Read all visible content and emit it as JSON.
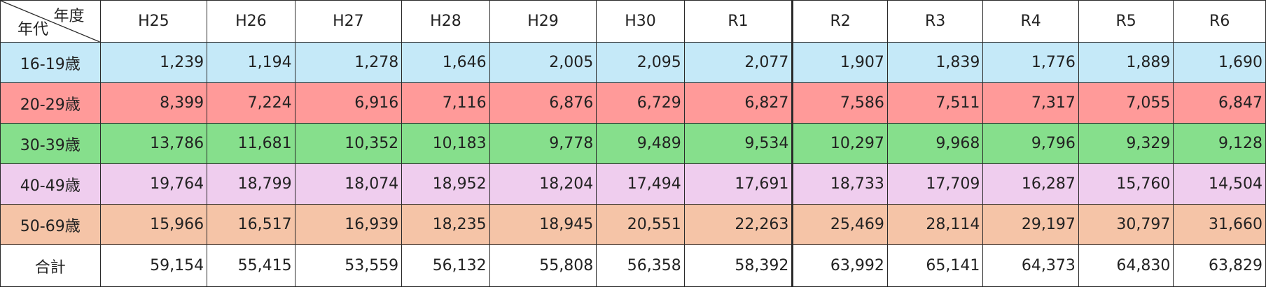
{
  "table": {
    "corner": {
      "col_header": "年度",
      "row_header": "年代"
    },
    "columns": [
      "H25",
      "H26",
      "H27",
      "H28",
      "H29",
      "H30",
      "R1",
      "R2",
      "R3",
      "R4",
      "R5",
      "R6"
    ],
    "rows": [
      {
        "label": "16-19歳",
        "values": [
          "1,239",
          "1,194",
          "1,278",
          "1,646",
          "2,005",
          "2,095",
          "2,077",
          "1,907",
          "1,839",
          "1,776",
          "1,889",
          "1,690"
        ]
      },
      {
        "label": "20-29歳",
        "values": [
          "8,399",
          "7,224",
          "6,916",
          "7,116",
          "6,876",
          "6,729",
          "6,827",
          "7,586",
          "7,511",
          "7,317",
          "7,055",
          "6,847"
        ]
      },
      {
        "label": "30-39歳",
        "values": [
          "13,786",
          "11,681",
          "10,352",
          "10,183",
          "9,778",
          "9,489",
          "9,534",
          "10,297",
          "9,968",
          "9,796",
          "9,329",
          "9,128"
        ]
      },
      {
        "label": "40-49歳",
        "values": [
          "19,764",
          "18,799",
          "18,074",
          "18,952",
          "18,204",
          "17,494",
          "17,691",
          "18,733",
          "17,709",
          "16,287",
          "15,760",
          "14,504"
        ]
      },
      {
        "label": "50-69歳",
        "values": [
          "15,966",
          "16,517",
          "16,939",
          "18,235",
          "18,945",
          "20,551",
          "22,263",
          "25,469",
          "28,114",
          "29,197",
          "30,797",
          "31,660"
        ]
      }
    ],
    "total": {
      "label": "合計",
      "values": [
        "59,154",
        "55,415",
        "53,559",
        "56,132",
        "55,808",
        "56,358",
        "58,392",
        "63,992",
        "65,141",
        "64,373",
        "64,830",
        "63,829"
      ]
    }
  },
  "colors": {
    "row_16_19": "#c5e9f8",
    "row_20_29": "#ff9a99",
    "row_30_39": "#86df8c",
    "row_40_49": "#efcdee",
    "row_50_69": "#f5c4a7"
  }
}
